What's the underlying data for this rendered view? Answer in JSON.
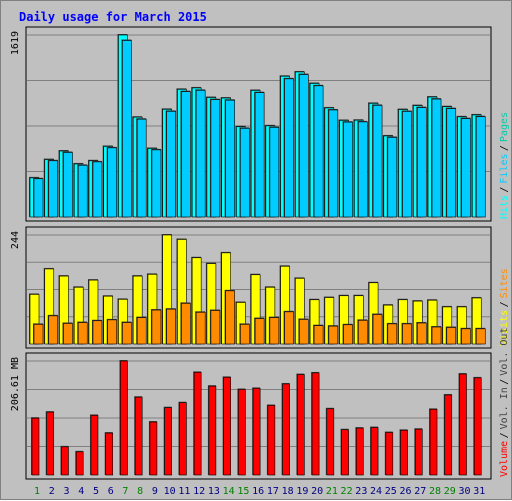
{
  "chart_data": {
    "type": "bar",
    "title": "Daily usage for March 2015",
    "days": [
      "1",
      "2",
      "3",
      "4",
      "5",
      "6",
      "7",
      "8",
      "9",
      "10",
      "11",
      "12",
      "13",
      "14",
      "15",
      "16",
      "17",
      "18",
      "19",
      "20",
      "21",
      "22",
      "23",
      "24",
      "25",
      "26",
      "27",
      "28",
      "29",
      "30",
      "31"
    ],
    "weekend_days": [
      "1",
      "7",
      "8",
      "14",
      "15",
      "21",
      "22",
      "28",
      "29"
    ],
    "colors": {
      "hits": "#00ffff",
      "files": "#00ccff",
      "pages": "#00ccaa",
      "visits": "#ffff00",
      "sites": "#ff8c00",
      "volume": "#ff0000",
      "title": "#0000ff",
      "weekday_label": "#000080",
      "weekend_label": "#008000",
      "panel_bg": "#c0c0c0",
      "grid": "#808080"
    },
    "panels": [
      {
        "id": "hits-files-pages",
        "ymax_label": "1619",
        "ymax": 1619,
        "legend": [
          {
            "label": "Hits",
            "color_key": "hits"
          },
          {
            "label": "Files",
            "color_key": "files"
          },
          {
            "label": "Pages",
            "color_key": "pages"
          }
        ],
        "series": [
          {
            "name": "Hits",
            "values": [
              348,
              511,
              587,
              472,
              500,
              628,
              1619,
              888,
              610,
              958,
              1136,
              1148,
              1063,
              1058,
              803,
              1126,
              811,
              1252,
              1290,
              1188,
              970,
              859,
              861,
              1011,
              721,
              956,
              991,
              1067,
              981,
              891,
              908
            ]
          },
          {
            "name": "Files",
            "values": [
              340,
              500,
              574,
              460,
              490,
              615,
              1570,
              870,
              597,
              940,
              1115,
              1127,
              1044,
              1039,
              789,
              1106,
              797,
              1229,
              1267,
              1167,
              952,
              844,
              846,
              993,
              708,
              939,
              973,
              1049,
              964,
              875,
              892
            ]
          }
        ]
      },
      {
        "id": "visits-sites",
        "ymax_label": "244",
        "ymax": 244,
        "legend": [
          {
            "label": "Visits",
            "color_key": "visits"
          },
          {
            "label": "Sites",
            "color_key": "sites"
          }
        ],
        "series": [
          {
            "name": "Visits",
            "values": [
              111,
              168,
              152,
              127,
              143,
              107,
              100,
              152,
              156,
              244,
              234,
              193,
              180,
              204,
              93,
              155,
              127,
              174,
              147,
              99,
              104,
              108,
              108,
              137,
              87,
              99,
              96,
              98,
              83,
              83,
              103
            ]
          },
          {
            "name": "Sites",
            "values": [
              44,
              63,
              46,
              48,
              52,
              54,
              48,
              59,
              76,
              78,
              91,
              71,
              75,
              119,
              44,
              57,
              59,
              72,
              55,
              41,
              40,
              43,
              53,
              66,
              45,
              45,
              47,
              38,
              37,
              34,
              34
            ]
          }
        ]
      },
      {
        "id": "volume",
        "ymax_label": "206.61 MB",
        "ymax": 206.61,
        "legend": [
          {
            "label": "Volume",
            "color_key": "volume"
          },
          {
            "label": "Vol. In",
            "color_key": "grid"
          },
          {
            "label": "Vol. Out",
            "color_key": "grid"
          }
        ],
        "series": [
          {
            "name": "Volume",
            "values": [
              103,
              114,
              51,
              42,
              108,
              76,
              206.61,
              141,
              96,
              122,
              131,
              186,
              161,
              177,
              155,
              157,
              126,
              165,
              182,
              185,
              120,
              82,
              85,
              86,
              77,
              81,
              83,
              119,
              145,
              183,
              176
            ]
          }
        ]
      }
    ]
  }
}
